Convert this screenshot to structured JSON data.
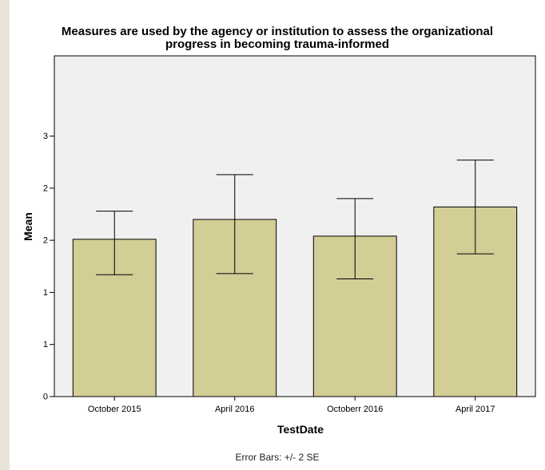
{
  "chart_data": {
    "type": "bar",
    "title_lines": [
      "Measures are used by the agency or institution to assess the organizational",
      "progress in becoming trauma-informed"
    ],
    "xlabel": "TestDate",
    "ylabel": "Mean",
    "categories": [
      "October 2015",
      "April 2016",
      "Octoberr 2016",
      "April 2017"
    ],
    "values": [
      1.51,
      1.7,
      1.54,
      1.82
    ],
    "error_low": [
      1.17,
      1.18,
      1.13,
      1.37
    ],
    "error_high": [
      1.78,
      2.13,
      1.9,
      2.27
    ],
    "ylim": [
      0,
      3.27
    ],
    "yticks": [
      0,
      0.5,
      1.0,
      1.5,
      2.0,
      2.5
    ],
    "ytick_labels": [
      "0",
      "1",
      "1",
      "2",
      "2",
      "3"
    ],
    "bar_color": "#d3cd96",
    "plot_background": "#f0f0f0",
    "footnote": "Error Bars: +/- 2 SE"
  }
}
